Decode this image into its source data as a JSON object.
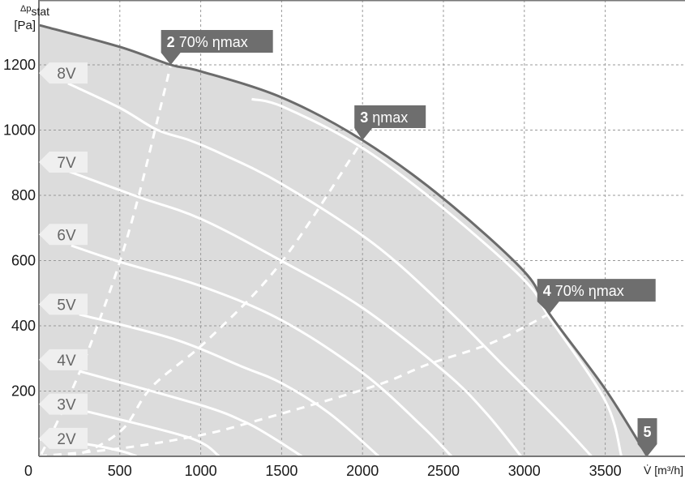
{
  "chart_data": {
    "type": "line",
    "title": "",
    "xlabel": "V̇ [m³/h]",
    "ylabel_main": "Δp",
    "ylabel_sub": "stat",
    "ylabel_unit": "[Pa]",
    "xlim": [
      0,
      3990
    ],
    "ylim": [
      0,
      1400
    ],
    "grid": true,
    "x_ticks": [
      0,
      500,
      1000,
      1500,
      2000,
      2500,
      3000,
      3500
    ],
    "y_ticks": [
      200,
      400,
      600,
      800,
      1000,
      1200
    ],
    "colors": {
      "fill": "#dcdcdc",
      "envelope": "#6b6b6b",
      "curves": "#ffffff",
      "callout": "#6e6e6e",
      "voltage_label_bg": "#efefef",
      "voltage_label_text": "#666666"
    },
    "envelope": [
      [
        0,
        1322
      ],
      [
        500,
        1255
      ],
      [
        815,
        1200
      ],
      [
        1000,
        1180
      ],
      [
        1500,
        1100
      ],
      [
        2000,
        969
      ],
      [
        2500,
        790
      ],
      [
        3000,
        566
      ],
      [
        3155,
        437
      ],
      [
        3500,
        206
      ],
      [
        3760,
        0
      ]
    ],
    "series": [
      {
        "name": "8V",
        "label_p": 1175,
        "points": [
          [
            180,
            1143
          ],
          [
            500,
            1068
          ],
          [
            730,
            1001
          ],
          [
            930,
            969
          ],
          [
            1130,
            927
          ],
          [
            1500,
            835
          ],
          [
            2065,
            653
          ],
          [
            2515,
            455
          ],
          [
            2865,
            281
          ],
          [
            3215,
            107
          ],
          [
            3415,
            0
          ]
        ]
      },
      {
        "name": "7V",
        "label_p": 902,
        "points": [
          [
            165,
            877
          ],
          [
            615,
            795
          ],
          [
            1000,
            728
          ],
          [
            1500,
            599
          ],
          [
            2000,
            455
          ],
          [
            2515,
            256
          ],
          [
            2765,
            132
          ],
          [
            2980,
            0
          ]
        ]
      },
      {
        "name": "6V",
        "label_p": 680,
        "points": [
          [
            200,
            646
          ],
          [
            500,
            596
          ],
          [
            1000,
            522
          ],
          [
            1500,
            417
          ],
          [
            2000,
            256
          ],
          [
            2365,
            94
          ],
          [
            2550,
            0
          ]
        ]
      },
      {
        "name": "5V",
        "label_p": 466,
        "points": [
          [
            250,
            435
          ],
          [
            830,
            360
          ],
          [
            1265,
            273
          ],
          [
            1500,
            224
          ],
          [
            1800,
            130
          ],
          [
            2100,
            0
          ]
        ]
      },
      {
        "name": "4V",
        "label_p": 296,
        "points": [
          [
            250,
            261
          ],
          [
            1000,
            157
          ],
          [
            1265,
            107
          ],
          [
            1430,
            62
          ],
          [
            1625,
            0
          ]
        ]
      },
      {
        "name": "3V",
        "label_p": 160,
        "points": [
          [
            300,
            137
          ],
          [
            930,
            57
          ],
          [
            1115,
            0
          ]
        ]
      },
      {
        "name": "2V",
        "label_p": 55,
        "points": [
          [
            0,
            52
          ],
          [
            300,
            37
          ],
          [
            515,
            15
          ],
          [
            605,
            0
          ]
        ]
      },
      {
        "points": [
          [
            1315,
            1095
          ],
          [
            1515,
            1070
          ],
          [
            2000,
            945
          ],
          [
            2500,
            760
          ],
          [
            3000,
            540
          ],
          [
            3155,
            425
          ],
          [
            3500,
            170
          ],
          [
            3600,
            0
          ]
        ]
      }
    ],
    "efficiency_lines": [
      {
        "num": "2",
        "label": "70% ηmax",
        "points": [
          [
            15,
            7
          ],
          [
            115,
            107
          ],
          [
            250,
            256
          ],
          [
            365,
            405
          ],
          [
            500,
            596
          ],
          [
            615,
            795
          ],
          [
            730,
            1026
          ],
          [
            815,
            1200
          ]
        ]
      },
      {
        "num": "3",
        "label": "ηmax",
        "points": [
          [
            0,
            0
          ],
          [
            250,
            7
          ],
          [
            515,
            82
          ],
          [
            700,
            214
          ],
          [
            1050,
            360
          ],
          [
            1500,
            596
          ],
          [
            2000,
            969
          ]
        ]
      },
      {
        "num": "4",
        "label": "70% ηmax",
        "points": [
          [
            0,
            0
          ],
          [
            515,
            25
          ],
          [
            1000,
            65
          ],
          [
            1330,
            107
          ],
          [
            2065,
            214
          ],
          [
            2400,
            281
          ],
          [
            2800,
            348
          ],
          [
            3155,
            437
          ]
        ]
      },
      {
        "num": "5",
        "label": "",
        "points": [
          [
            3760,
            0
          ]
        ]
      }
    ]
  }
}
